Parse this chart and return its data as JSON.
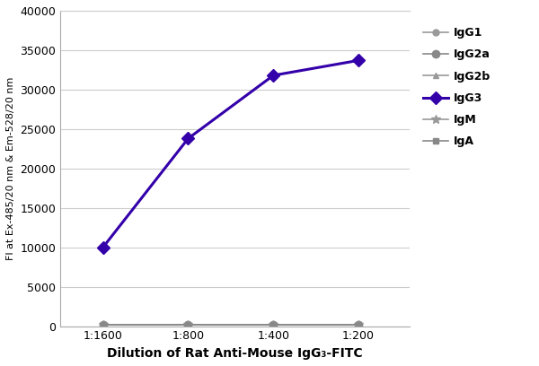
{
  "x_labels": [
    "1:1600",
    "1:800",
    "1:400",
    "1:200"
  ],
  "x_positions": [
    1,
    2,
    3,
    4
  ],
  "series": [
    {
      "label": "IgG1",
      "values": [
        200,
        200,
        200,
        200
      ],
      "color": "#999999",
      "marker": "o",
      "linewidth": 1.2,
      "markersize": 5,
      "zorder": 2,
      "markerfacecolor": "#999999",
      "markeredgecolor": "#999999"
    },
    {
      "label": "IgG2a",
      "values": [
        200,
        200,
        200,
        200
      ],
      "color": "#888888",
      "marker": "o",
      "linewidth": 1.2,
      "markersize": 6,
      "zorder": 2,
      "markerfacecolor": "#888888",
      "markeredgecolor": "#888888"
    },
    {
      "label": "IgG2b",
      "values": [
        200,
        200,
        200,
        200
      ],
      "color": "#999999",
      "marker": "^",
      "linewidth": 1.2,
      "markersize": 5,
      "zorder": 2,
      "markerfacecolor": "#999999",
      "markeredgecolor": "#999999"
    },
    {
      "label": "IgG3",
      "values": [
        10000,
        23800,
        31800,
        33700
      ],
      "color": "#3300AA",
      "marker": "D",
      "linewidth": 2.2,
      "markersize": 7,
      "zorder": 5,
      "markerfacecolor": "#3300AA",
      "markeredgecolor": "#3300AA"
    },
    {
      "label": "IgM",
      "values": [
        200,
        200,
        200,
        200
      ],
      "color": "#999999",
      "marker": "*",
      "linewidth": 1.2,
      "markersize": 7,
      "zorder": 2,
      "markerfacecolor": "#999999",
      "markeredgecolor": "#999999"
    },
    {
      "label": "IgA",
      "values": [
        200,
        200,
        200,
        200
      ],
      "color": "#888888",
      "marker": "s",
      "linewidth": 1.2,
      "markersize": 5,
      "zorder": 2,
      "markerfacecolor": "#888888",
      "markeredgecolor": "#888888"
    }
  ],
  "xlabel": "Dilution of Rat Anti-Mouse IgG₃-FITC",
  "ylabel": "FI at Ex-485/20 nm & Em-528/20 nm",
  "ylim": [
    0,
    40000
  ],
  "yticks": [
    0,
    5000,
    10000,
    15000,
    20000,
    25000,
    30000,
    35000,
    40000
  ],
  "title": "",
  "background_color": "#ffffff",
  "grid_color": "#cccccc",
  "legend_fontsize": 9,
  "axis_label_fontsize": 10,
  "tick_fontsize": 9
}
